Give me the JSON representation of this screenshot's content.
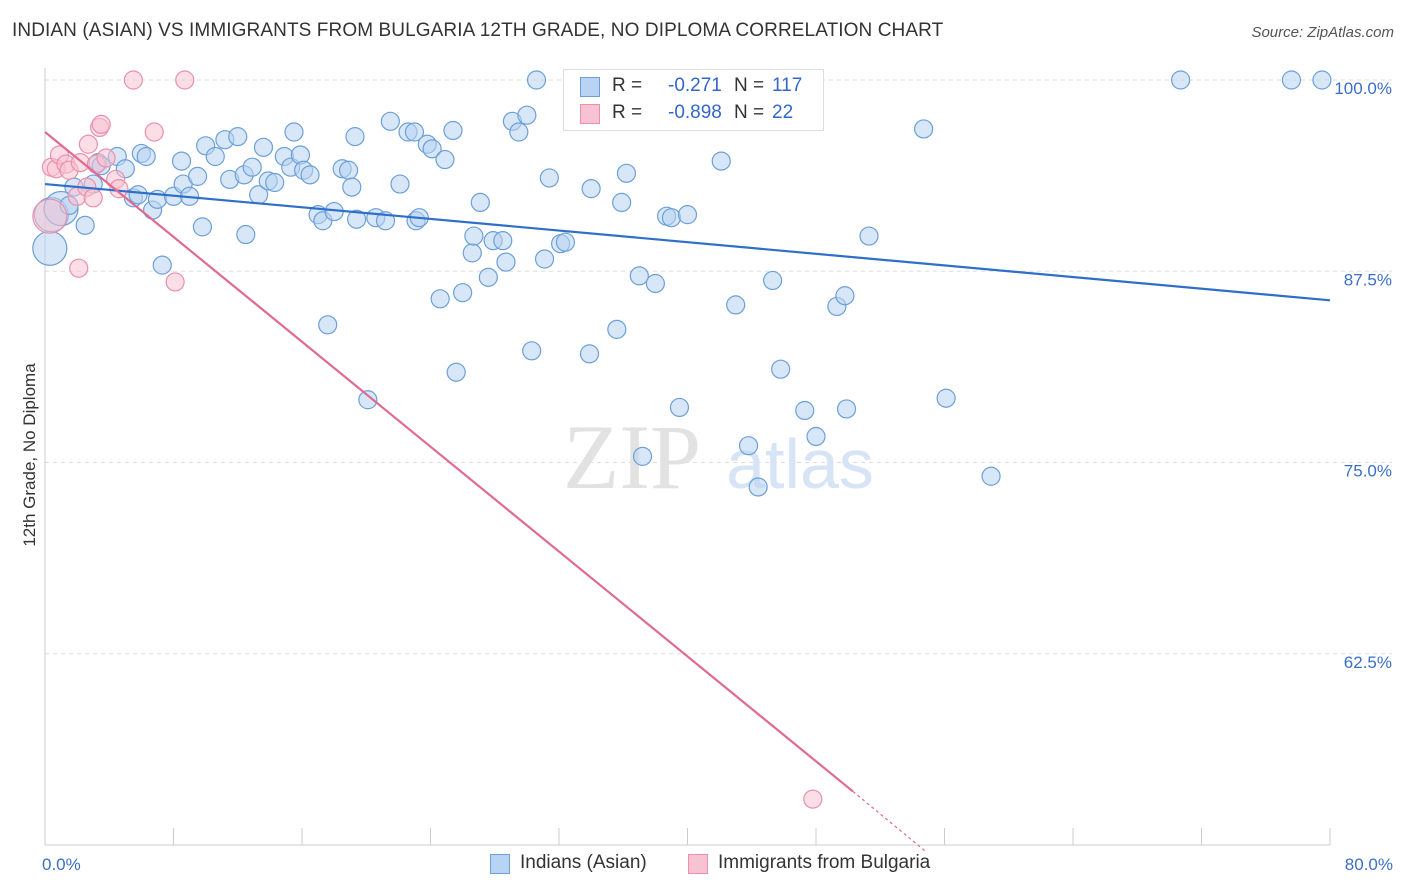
{
  "title": "INDIAN (ASIAN) VS IMMIGRANTS FROM BULGARIA 12TH GRADE, NO DIPLOMA CORRELATION CHART",
  "source": "Source: ZipAtlas.com",
  "watermark": {
    "zip": "ZIP",
    "atlas": "atlas"
  },
  "legend_top": {
    "rows": [
      {
        "r_label": "R =",
        "r_value": "-0.271",
        "n_label": "N =",
        "n_value": "117"
      },
      {
        "r_label": "R =",
        "r_value": "-0.898",
        "n_label": "N =",
        "n_value": "22"
      }
    ]
  },
  "legend_bottom": {
    "items": [
      "Indians (Asian)",
      "Immigrants from Bulgaria"
    ]
  },
  "colors": {
    "blue_fill": "#b8d3f3",
    "blue_stroke": "#6c9fd8",
    "blue_line": "#2e6fc9",
    "pink_fill": "#f7c2d2",
    "pink_stroke": "#ea90ad",
    "pink_line": "#e06a93",
    "value_text": "#3366cc",
    "axis_label": "#3b6fc7",
    "grid": "#dddddd"
  },
  "chart_data": {
    "type": "scatter",
    "title": "INDIAN (ASIAN) VS IMMIGRANTS FROM BULGARIA 12TH GRADE, NO DIPLOMA CORRELATION CHART",
    "xlabel": "",
    "ylabel": "12th Grade, No Diploma",
    "xlim": [
      0,
      80
    ],
    "ylim": [
      50,
      100
    ],
    "x_tick_labels": [
      "0.0%",
      "80.0%"
    ],
    "y_tick_values": [
      100,
      87.5,
      75,
      62.5
    ],
    "y_tick_labels": [
      "100.0%",
      "87.5%",
      "75.0%",
      "62.5%"
    ],
    "series": [
      {
        "name": "Indians (Asian)",
        "color": "blue",
        "r": -0.271,
        "n": 117,
        "trend": {
          "x": [
            0,
            80
          ],
          "y": [
            93.2,
            85.6
          ]
        },
        "points": [
          [
            0.3,
            89.0,
            1
          ],
          [
            0.4,
            91.2,
            1
          ],
          [
            1.0,
            91.6,
            1
          ],
          [
            1.5,
            91.8,
            0
          ],
          [
            1.8,
            93.0,
            0
          ],
          [
            2.5,
            90.5,
            0
          ],
          [
            3.0,
            93.2,
            0
          ],
          [
            3.3,
            94.6,
            0
          ],
          [
            3.5,
            94.4,
            0
          ],
          [
            4.5,
            95.0,
            0
          ],
          [
            5.0,
            94.2,
            0
          ],
          [
            5.5,
            92.3,
            0
          ],
          [
            5.8,
            92.5,
            0
          ],
          [
            6.0,
            95.2,
            0
          ],
          [
            6.3,
            95.0,
            0
          ],
          [
            6.7,
            91.5,
            0
          ],
          [
            7.0,
            92.2,
            0
          ],
          [
            7.3,
            87.9,
            0
          ],
          [
            8.0,
            92.4,
            0
          ],
          [
            8.5,
            94.7,
            0
          ],
          [
            8.6,
            93.2,
            0
          ],
          [
            9.0,
            92.4,
            0
          ],
          [
            9.5,
            93.7,
            0
          ],
          [
            9.8,
            90.4,
            0
          ],
          [
            10.0,
            95.7,
            0
          ],
          [
            10.6,
            95.0,
            0
          ],
          [
            11.2,
            96.1,
            0
          ],
          [
            11.5,
            93.5,
            0
          ],
          [
            12.0,
            96.3,
            0
          ],
          [
            12.4,
            93.8,
            0
          ],
          [
            12.5,
            89.9,
            0
          ],
          [
            12.9,
            94.3,
            0
          ],
          [
            13.3,
            92.5,
            0
          ],
          [
            13.6,
            95.6,
            0
          ],
          [
            13.9,
            93.4,
            0
          ],
          [
            14.3,
            93.3,
            0
          ],
          [
            14.9,
            95.0,
            0
          ],
          [
            15.3,
            94.3,
            0
          ],
          [
            15.5,
            96.6,
            0
          ],
          [
            15.9,
            95.1,
            0
          ],
          [
            16.1,
            94.1,
            0
          ],
          [
            16.5,
            93.8,
            0
          ],
          [
            17.0,
            91.2,
            0
          ],
          [
            17.3,
            90.8,
            0
          ],
          [
            17.6,
            84.0,
            0
          ],
          [
            18.0,
            91.4,
            0
          ],
          [
            18.5,
            94.2,
            0
          ],
          [
            18.9,
            94.1,
            0
          ],
          [
            19.1,
            93.0,
            0
          ],
          [
            19.3,
            96.3,
            0
          ],
          [
            19.4,
            90.9,
            0
          ],
          [
            20.1,
            79.1,
            0
          ],
          [
            20.6,
            91.0,
            0
          ],
          [
            21.2,
            90.8,
            0
          ],
          [
            21.5,
            97.3,
            0
          ],
          [
            22.1,
            93.2,
            0
          ],
          [
            22.6,
            96.6,
            0
          ],
          [
            23.0,
            96.6,
            0
          ],
          [
            23.1,
            90.8,
            0
          ],
          [
            23.3,
            91.0,
            0
          ],
          [
            23.8,
            95.8,
            0
          ],
          [
            24.1,
            95.5,
            0
          ],
          [
            24.6,
            85.7,
            0
          ],
          [
            24.9,
            94.8,
            0
          ],
          [
            25.4,
            96.7,
            0
          ],
          [
            25.6,
            80.9,
            0
          ],
          [
            26.0,
            86.1,
            0
          ],
          [
            26.6,
            88.7,
            0
          ],
          [
            26.7,
            89.8,
            0
          ],
          [
            27.1,
            92.0,
            0
          ],
          [
            27.6,
            87.1,
            0
          ],
          [
            27.9,
            89.5,
            0
          ],
          [
            28.5,
            89.5,
            0
          ],
          [
            28.7,
            88.1,
            0
          ],
          [
            29.1,
            97.3,
            0
          ],
          [
            29.5,
            96.6,
            0
          ],
          [
            30.0,
            97.7,
            0
          ],
          [
            30.3,
            82.3,
            0
          ],
          [
            30.6,
            100.0,
            0
          ],
          [
            31.1,
            88.3,
            0
          ],
          [
            31.4,
            93.6,
            0
          ],
          [
            32.1,
            89.3,
            0
          ],
          [
            32.4,
            89.4,
            0
          ],
          [
            33.9,
            82.1,
            0
          ],
          [
            34.0,
            92.9,
            0
          ],
          [
            35.6,
            83.7,
            0
          ],
          [
            35.9,
            92.0,
            0
          ],
          [
            36.2,
            93.9,
            0
          ],
          [
            37.0,
            87.2,
            0
          ],
          [
            37.2,
            75.4,
            0
          ],
          [
            38.0,
            86.7,
            0
          ],
          [
            38.7,
            91.1,
            0
          ],
          [
            39.0,
            91.0,
            0
          ],
          [
            39.5,
            78.6,
            0
          ],
          [
            40.0,
            91.2,
            0
          ],
          [
            42.1,
            94.7,
            0
          ],
          [
            43.0,
            85.3,
            0
          ],
          [
            44.4,
            73.4,
            0
          ],
          [
            43.8,
            76.1,
            0
          ],
          [
            45.3,
            86.9,
            0
          ],
          [
            45.8,
            81.1,
            0
          ],
          [
            47.3,
            78.4,
            0
          ],
          [
            48.0,
            76.7,
            0
          ],
          [
            47.8,
            100.0,
            0
          ],
          [
            49.3,
            85.2,
            0
          ],
          [
            49.8,
            85.9,
            0
          ],
          [
            49.9,
            78.5,
            0
          ],
          [
            51.3,
            89.8,
            0
          ],
          [
            54.7,
            96.8,
            0
          ],
          [
            56.1,
            79.2,
            0
          ],
          [
            58.9,
            74.1,
            0
          ],
          [
            70.7,
            100.0,
            0
          ],
          [
            77.6,
            100.0,
            0
          ],
          [
            79.5,
            100.0,
            0
          ]
        ]
      },
      {
        "name": "Immigrants from Bulgaria",
        "color": "pink",
        "r": -0.898,
        "n": 22,
        "trend": {
          "x": [
            0,
            50.3
          ],
          "y": [
            96.6,
            53.5
          ]
        },
        "trend_dashed": {
          "x": [
            50.3,
            54.8
          ],
          "y": [
            53.5,
            49.6
          ]
        },
        "points": [
          [
            0.3,
            91.1,
            1
          ],
          [
            0.4,
            94.3,
            0
          ],
          [
            0.7,
            94.2,
            0
          ],
          [
            0.9,
            95.1,
            0
          ],
          [
            1.3,
            94.5,
            0
          ],
          [
            1.5,
            94.1,
            0
          ],
          [
            2.0,
            92.4,
            0
          ],
          [
            2.2,
            94.6,
            0
          ],
          [
            2.1,
            87.7,
            0
          ],
          [
            2.6,
            93.0,
            0
          ],
          [
            2.7,
            95.8,
            0
          ],
          [
            3.0,
            92.3,
            0
          ],
          [
            3.2,
            94.5,
            0
          ],
          [
            3.4,
            96.9,
            0
          ],
          [
            3.8,
            94.9,
            0
          ],
          [
            3.5,
            97.1,
            0
          ],
          [
            4.4,
            93.5,
            0
          ],
          [
            4.6,
            92.9,
            0
          ],
          [
            5.5,
            100.0,
            0
          ],
          [
            6.8,
            96.6,
            0
          ],
          [
            8.1,
            86.8,
            0
          ],
          [
            8.7,
            100.0,
            0
          ],
          [
            47.8,
            53.0,
            0
          ]
        ]
      }
    ]
  }
}
